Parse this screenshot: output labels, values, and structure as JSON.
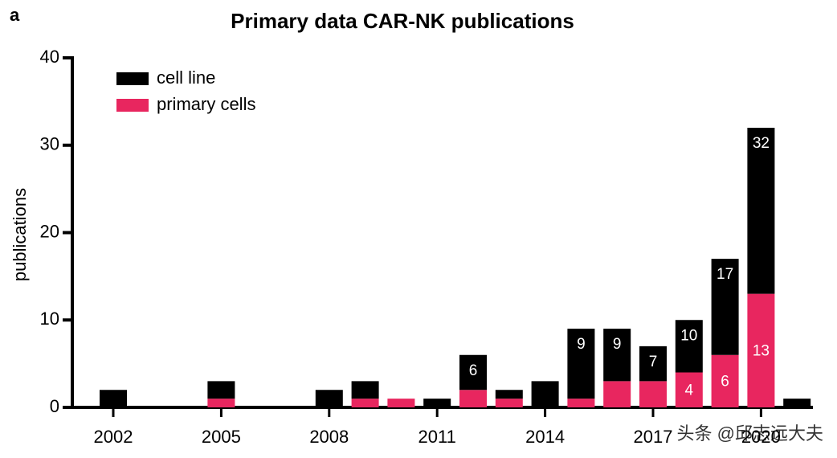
{
  "panel_label": "a",
  "chart_data": {
    "type": "stacked_bar",
    "title": "Primary data CAR-NK publications",
    "y_label": "publications",
    "categories": [
      "2002",
      null,
      null,
      "2005",
      null,
      null,
      "2008",
      null,
      null,
      "2011",
      null,
      null,
      "2014",
      null,
      null,
      "2017",
      null,
      null,
      "2020",
      null
    ],
    "series": [
      {
        "name": "cell line",
        "color": "#000000",
        "values": [
          2,
          0,
          0,
          2,
          0,
          0,
          2,
          2,
          0,
          1,
          4,
          1,
          3,
          8,
          6,
          4,
          6,
          11,
          19,
          1
        ]
      },
      {
        "name": "primary cells",
        "color": "#e8265f",
        "values": [
          0,
          0,
          0,
          1,
          0,
          0,
          0,
          1,
          1,
          0,
          2,
          1,
          0,
          1,
          3,
          3,
          4,
          6,
          13,
          0
        ],
        "value_labels": [
          null,
          null,
          null,
          null,
          null,
          null,
          null,
          null,
          null,
          null,
          null,
          null,
          null,
          null,
          null,
          null,
          "4",
          "6",
          "13",
          null
        ]
      }
    ],
    "totals": [
      null,
      null,
      null,
      null,
      null,
      null,
      null,
      null,
      null,
      null,
      6,
      null,
      null,
      9,
      9,
      7,
      10,
      17,
      32,
      null
    ],
    "ylim": [
      0,
      40
    ],
    "yticks": [
      0,
      10,
      20,
      30,
      40
    ],
    "legend": "top-left"
  },
  "watermark": "头条 @邱志远大夫"
}
